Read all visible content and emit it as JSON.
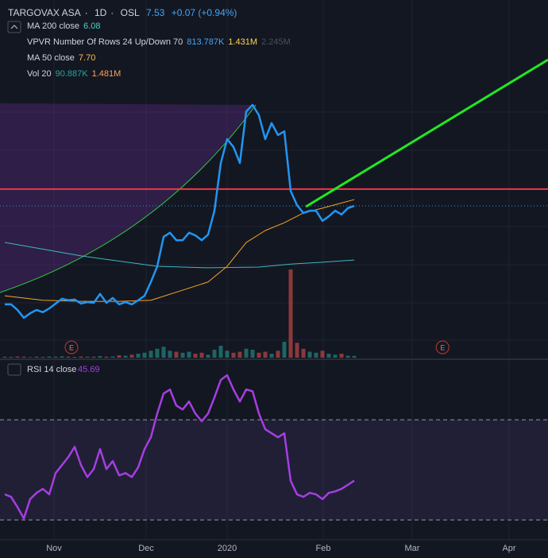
{
  "header": {
    "symbol": "TARGOVAX ASA",
    "interval": "1D",
    "exchange": "OSL",
    "price": "7.53",
    "change": "+0.07 (+0.94%)"
  },
  "legends": [
    {
      "label": "MA 200 close",
      "values": [
        {
          "text": "6.08",
          "color": "#4dd0c8"
        }
      ]
    },
    {
      "label": "VPVR Number Of Rows 24 Up/Down 70",
      "values": [
        {
          "text": "813.787K",
          "color": "#42a5f5"
        },
        {
          "text": "1.431M",
          "color": "#ffd54f"
        },
        {
          "text": "2.245M",
          "color": "#4a4f5c"
        }
      ]
    },
    {
      "label": "MA 50 close",
      "values": [
        {
          "text": "7.70",
          "color": "#ffb74d"
        }
      ]
    },
    {
      "label": "Vol 20",
      "values": [
        {
          "text": "90.887K",
          "color": "#26a69a"
        },
        {
          "text": "1.481M",
          "color": "#ff9f5a"
        }
      ]
    }
  ],
  "chart_data": [
    {
      "type": "line",
      "xlim": [
        0,
        85.5
      ],
      "ylim": [
        3.46,
        10.6
      ],
      "x": [
        0,
        1,
        2,
        3,
        4,
        5,
        6,
        7,
        8,
        9,
        10,
        11,
        12,
        13,
        14,
        15,
        16,
        17,
        18,
        19,
        20,
        21,
        22,
        23,
        24,
        25,
        26,
        27,
        28,
        29,
        30,
        31,
        32,
        33,
        34,
        35,
        36,
        37,
        38,
        39,
        40,
        41,
        42,
        43,
        44,
        45,
        46,
        47,
        48,
        49,
        50,
        51,
        52,
        53,
        54,
        55
      ],
      "series": [
        {
          "color": "#2196f3",
          "values": [
            4.89,
            4.89,
            4.74,
            4.53,
            4.65,
            4.74,
            4.68,
            4.78,
            4.91,
            5.04,
            5.0,
            5.02,
            4.91,
            4.95,
            4.93,
            5.17,
            4.93,
            5.06,
            4.89,
            4.95,
            4.89,
            5.0,
            5.12,
            5.49,
            5.91,
            6.7,
            6.81,
            6.61,
            6.61,
            6.81,
            6.74,
            6.61,
            6.76,
            7.4,
            8.68,
            9.32,
            9.11,
            8.68,
            10.06,
            10.24,
            9.96,
            9.32,
            9.75,
            9.43,
            9.53,
            7.93,
            7.55,
            7.34,
            7.4,
            7.4,
            7.13,
            7.25,
            7.4,
            7.3,
            7.47,
            7.53
          ]
        },
        {
          "name": "MA 50 close",
          "color": "#f5a623",
          "x": [
            0,
            6,
            12,
            18,
            23,
            28,
            32,
            35,
            38,
            41,
            44,
            47,
            50,
            55
          ],
          "values": [
            5.12,
            5.0,
            4.97,
            4.97,
            5.0,
            5.27,
            5.49,
            5.91,
            6.55,
            6.87,
            7.08,
            7.34,
            7.47,
            7.7
          ]
        },
        {
          "name": "MA 200 close",
          "color": "#3fb6c6",
          "x": [
            0,
            12,
            24,
            32,
            40,
            45,
            50,
            55
          ],
          "values": [
            6.55,
            6.19,
            5.91,
            5.87,
            5.89,
            5.97,
            6.02,
            6.08
          ]
        }
      ],
      "last_price": 7.53,
      "last_price_color": "#2196f3",
      "hlines": [
        {
          "value": 7.98,
          "color": "#f23645"
        }
      ],
      "trendline": {
        "x": [
          47.4,
          85.5
        ],
        "values": [
          7.51,
          11.45
        ],
        "color": "#22e822"
      },
      "volume": {
        "ylim": [
          0,
          13.4
        ],
        "up_color": "#26a69a",
        "down_color": "#ef5350",
        "values": [
          0.05,
          0.04,
          0.06,
          0.05,
          0.03,
          0.05,
          0.04,
          0.06,
          0.05,
          0.07,
          0.05,
          0.04,
          0.06,
          0.05,
          0.05,
          0.08,
          0.05,
          0.06,
          0.12,
          0.1,
          0.15,
          0.2,
          0.25,
          0.35,
          0.45,
          0.55,
          0.35,
          0.3,
          0.25,
          0.3,
          0.2,
          0.25,
          0.15,
          0.4,
          0.6,
          0.35,
          0.25,
          0.3,
          0.45,
          0.4,
          0.25,
          0.3,
          0.2,
          0.35,
          0.8,
          4.44,
          0.75,
          0.45,
          0.3,
          0.25,
          0.35,
          0.2,
          0.15,
          0.2,
          0.1,
          0.09
        ]
      },
      "events": [
        {
          "x": 10.5,
          "label": "E"
        },
        {
          "x": 68.9,
          "label": "E"
        }
      ]
    },
    {
      "type": "line",
      "title": "RSI 14 close",
      "value_text": "45.69",
      "xlim": [
        0,
        85.5
      ],
      "ylim": [
        22.4,
        92.9
      ],
      "levels": [
        70,
        30
      ],
      "x": [
        0,
        1,
        2,
        3,
        4,
        5,
        6,
        7,
        8,
        9,
        10,
        11,
        12,
        13,
        14,
        15,
        16,
        17,
        18,
        19,
        20,
        21,
        22,
        23,
        24,
        25,
        26,
        27,
        28,
        29,
        30,
        31,
        32,
        33,
        34,
        35,
        36,
        37,
        38,
        39,
        40,
        41,
        42,
        43,
        44,
        45,
        46,
        47,
        48,
        49,
        50,
        51,
        52,
        53,
        54,
        55
      ],
      "series": [
        {
          "color": "#a63ee0",
          "values": [
            40.2,
            39.2,
            35.1,
            30.6,
            38.3,
            40.8,
            42.4,
            40.2,
            48.7,
            51.9,
            55.1,
            59.2,
            51.9,
            47.1,
            50.3,
            58.3,
            50.3,
            53.5,
            47.8,
            48.7,
            47.1,
            51.0,
            58.3,
            63.0,
            72.5,
            80.5,
            82.1,
            75.7,
            74.1,
            77.3,
            72.5,
            69.4,
            72.5,
            78.9,
            85.9,
            87.8,
            82.1,
            77.3,
            82.1,
            81.4,
            72.5,
            66.2,
            64.6,
            63.0,
            64.6,
            45.6,
            40.2,
            39.2,
            40.8,
            40.2,
            38.3,
            40.8,
            41.4,
            42.4,
            44.0,
            45.69
          ]
        }
      ],
      "xticks": [
        {
          "value": 7.75,
          "label": "Nov"
        },
        {
          "value": 22.25,
          "label": "Dec"
        },
        {
          "value": 35,
          "label": "2020"
        },
        {
          "value": 50.125,
          "label": "Feb"
        },
        {
          "value": 64.125,
          "label": "Mar"
        },
        {
          "value": 79.375,
          "label": "Apr"
        }
      ]
    }
  ]
}
